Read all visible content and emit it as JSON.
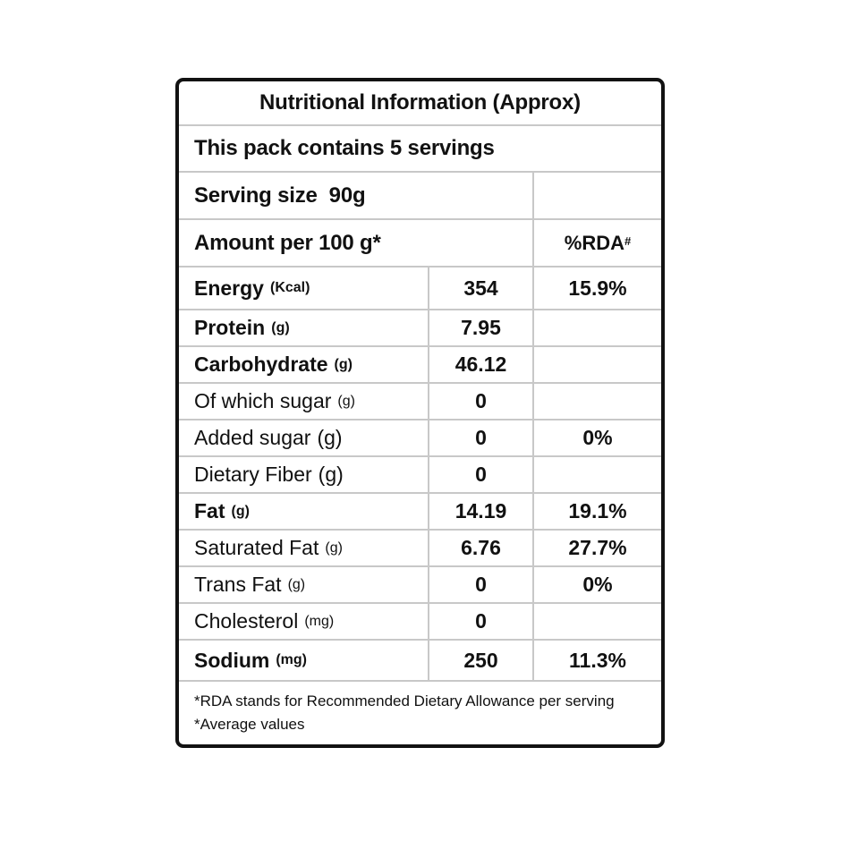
{
  "table": {
    "title": "Nutritional Information (Approx)",
    "servings_line": "This pack contains 5 servings",
    "serving_size_label": "Serving size",
    "serving_size_value": "90g",
    "amount_header": "Amount per 100 g*",
    "rda_header": "%RDA",
    "rda_header_sup": "#",
    "rows": [
      {
        "label": "Energy",
        "unit": "(Kcal)",
        "value": "354",
        "rda": "15.9%",
        "bold": true,
        "unit_small": true
      },
      {
        "label": "Protein",
        "unit": "(g)",
        "value": "7.95",
        "rda": "",
        "bold": true,
        "unit_small": true
      },
      {
        "label": "Carbohydrate",
        "unit": "(g)",
        "value": "46.12",
        "rda": "",
        "bold": true,
        "unit_small": true
      },
      {
        "label": "Of which sugar",
        "unit": "(g)",
        "value": "0",
        "rda": "",
        "bold": false,
        "unit_small": true
      },
      {
        "label": "Added sugar",
        "unit": "(g)",
        "value": "0",
        "rda": "0%",
        "bold": false,
        "unit_small": false
      },
      {
        "label": "Dietary Fiber",
        "unit": "(g)",
        "value": "0",
        "rda": "",
        "bold": false,
        "unit_small": false
      },
      {
        "label": "Fat",
        "unit": "(g)",
        "value": "14.19",
        "rda": "19.1%",
        "bold": true,
        "unit_small": true
      },
      {
        "label": "Saturated Fat",
        "unit": "(g)",
        "value": "6.76",
        "rda": "27.7%",
        "bold": false,
        "unit_small": true
      },
      {
        "label": "Trans Fat",
        "unit": "(g)",
        "value": "0",
        "rda": "0%",
        "bold": false,
        "unit_small": true
      },
      {
        "label": "Cholesterol",
        "unit": "(mg)",
        "value": "0",
        "rda": "",
        "bold": false,
        "unit_small": true
      },
      {
        "label": "Sodium",
        "unit": "(mg)",
        "value": "250",
        "rda": "11.3%",
        "bold": true,
        "unit_small": true
      }
    ],
    "footnotes": [
      "*RDA stands for Recommended Dietary Allowance per serving",
      "*Average values"
    ],
    "colors": {
      "border": "#121212",
      "grid_line": "#c8c8c8",
      "text": "#111111",
      "background": "#ffffff"
    }
  }
}
